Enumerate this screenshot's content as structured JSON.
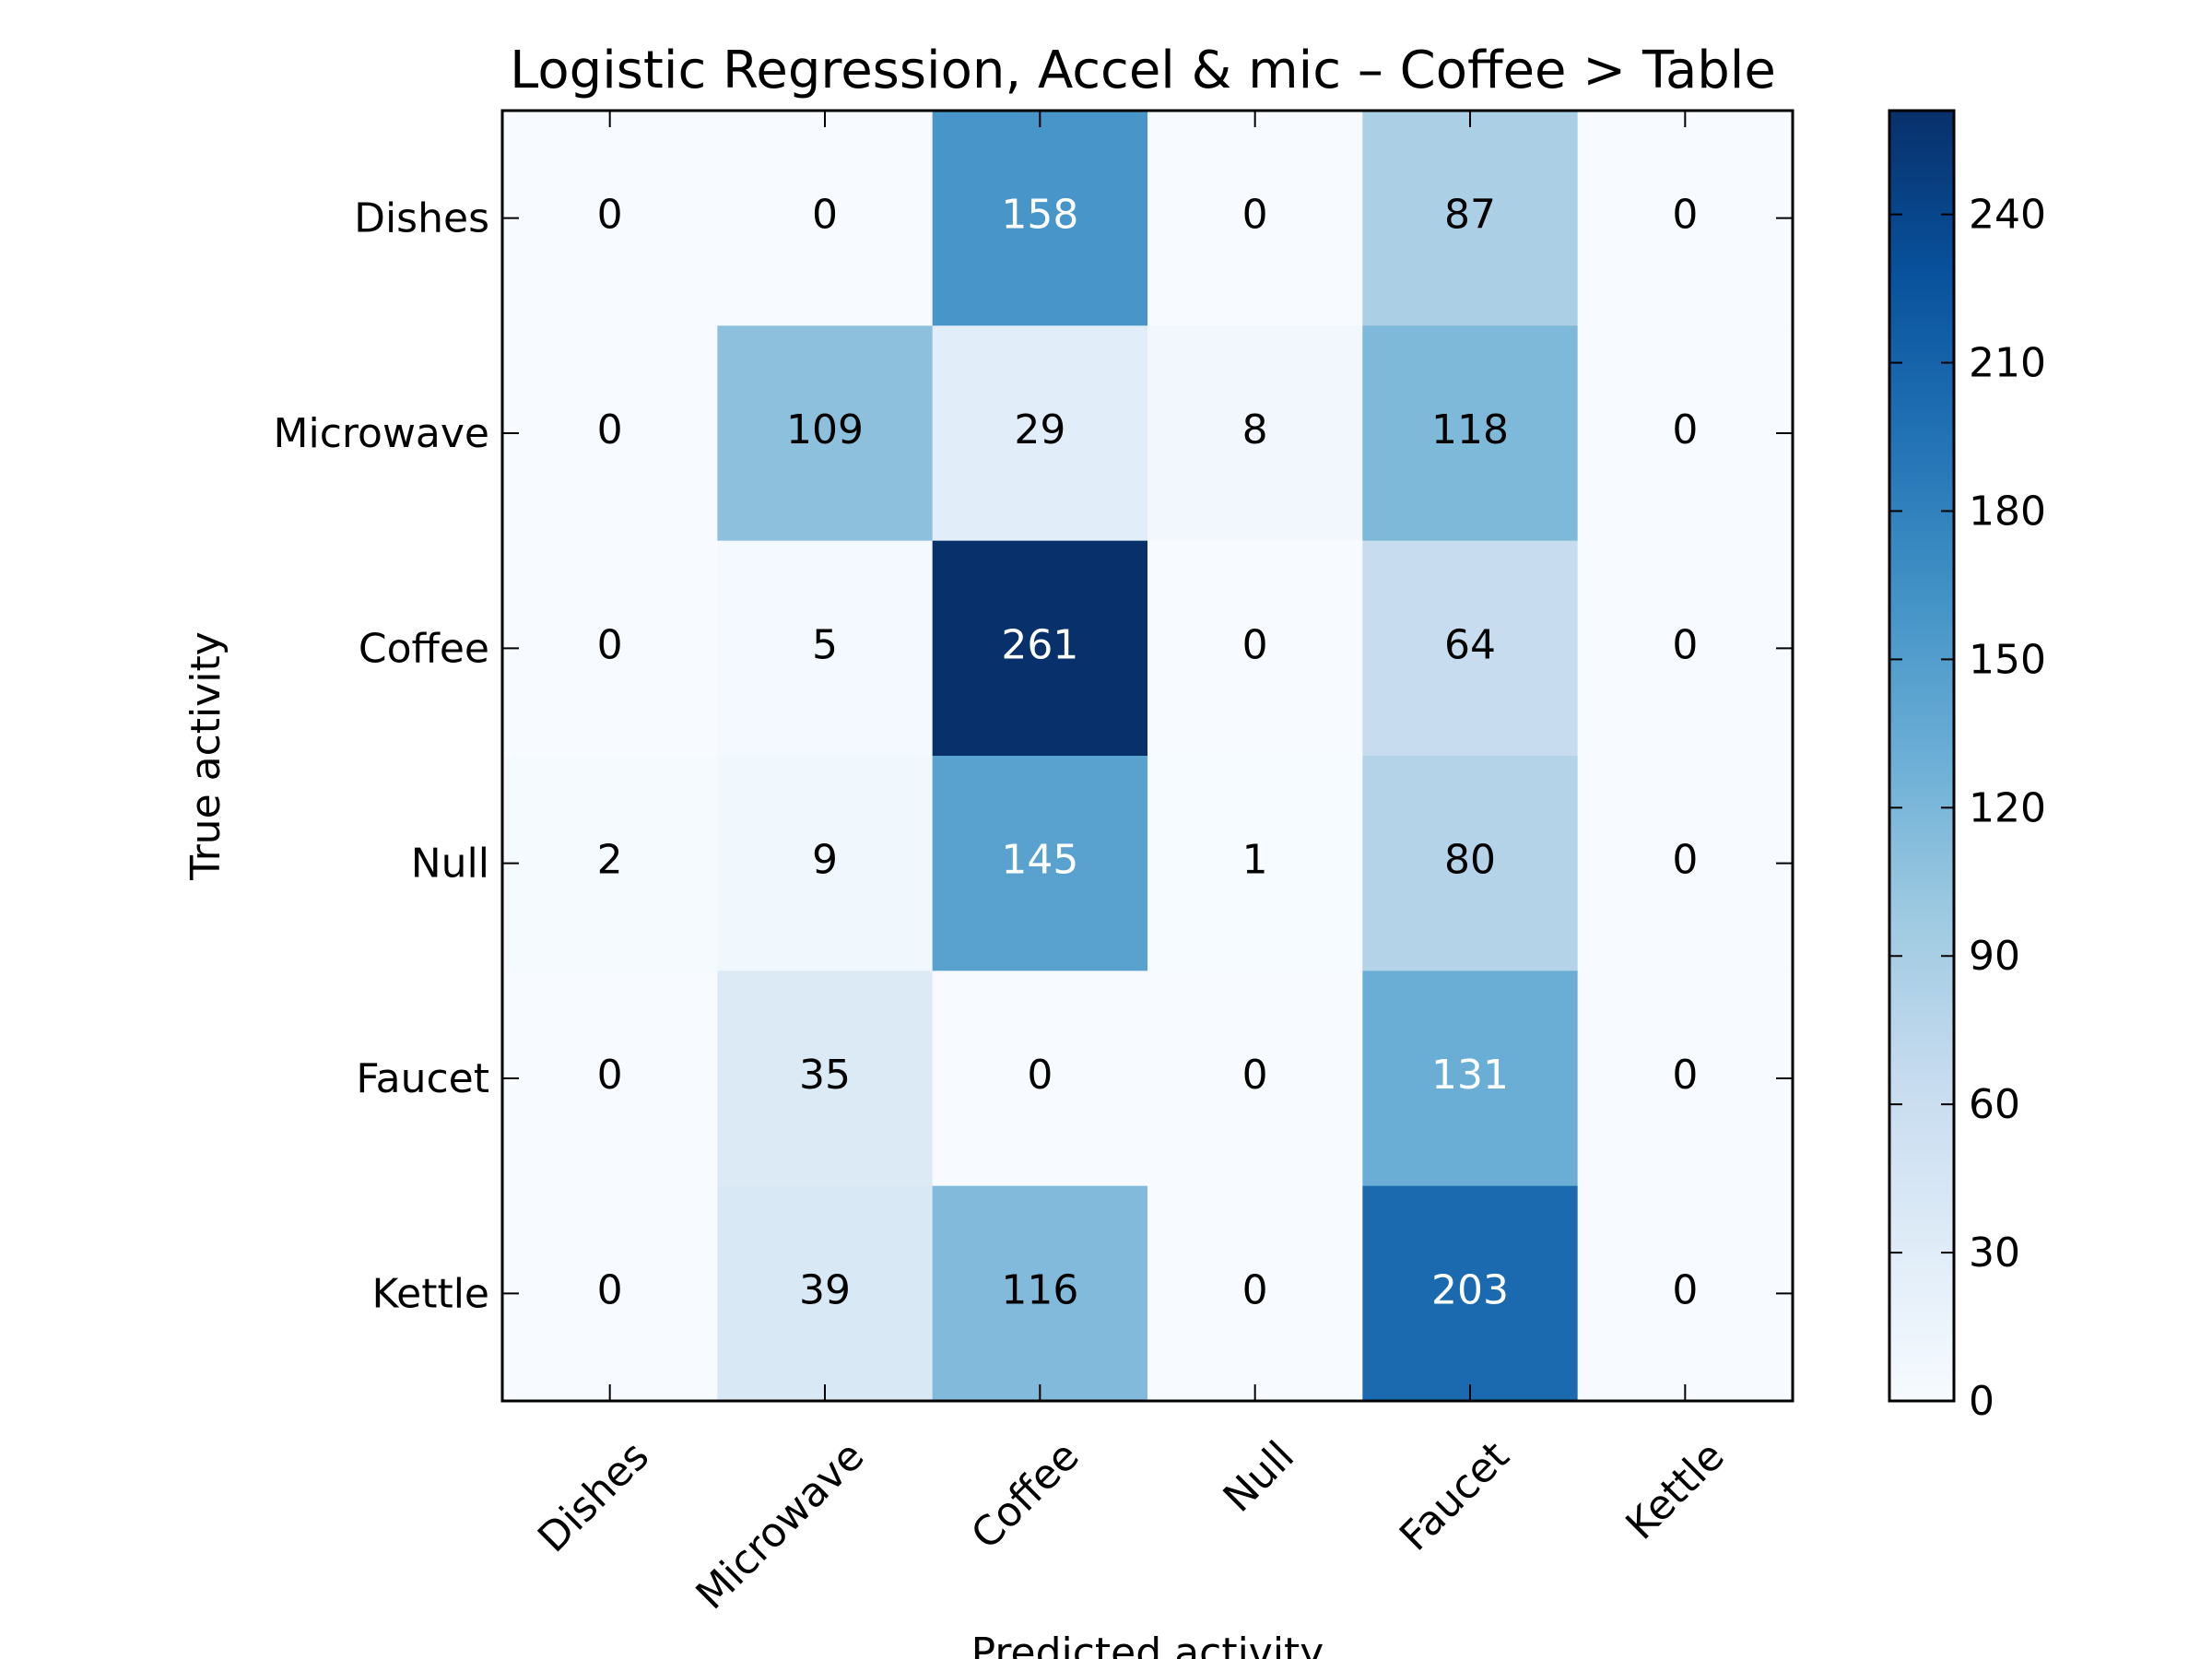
{
  "chart_data": {
    "type": "heatmap",
    "title": "Logistic Regression, Accel & mic – Coffee > Table",
    "xlabel": "Predicted activity",
    "ylabel": "True activity",
    "row_labels": [
      "Dishes",
      "Microwave",
      "Coffee",
      "Null",
      "Faucet",
      "Kettle"
    ],
    "col_labels": [
      "Dishes",
      "Microwave",
      "Coffee",
      "Null",
      "Faucet",
      "Kettle"
    ],
    "values": [
      [
        0,
        0,
        158,
        0,
        87,
        0
      ],
      [
        0,
        109,
        29,
        8,
        118,
        0
      ],
      [
        0,
        5,
        261,
        0,
        64,
        0
      ],
      [
        2,
        9,
        145,
        1,
        80,
        0
      ],
      [
        0,
        35,
        0,
        0,
        131,
        0
      ],
      [
        0,
        39,
        116,
        0,
        203,
        0
      ]
    ],
    "value_range": [
      0,
      261
    ],
    "colormap": "Blues",
    "colorbar_ticks": [
      0,
      30,
      60,
      90,
      120,
      150,
      180,
      210,
      240
    ],
    "colorbar_labels": [
      "0",
      "30",
      "60",
      "90",
      "120",
      "150",
      "180",
      "210",
      "240"
    ],
    "grid": false,
    "colorbar_placement": "right"
  }
}
